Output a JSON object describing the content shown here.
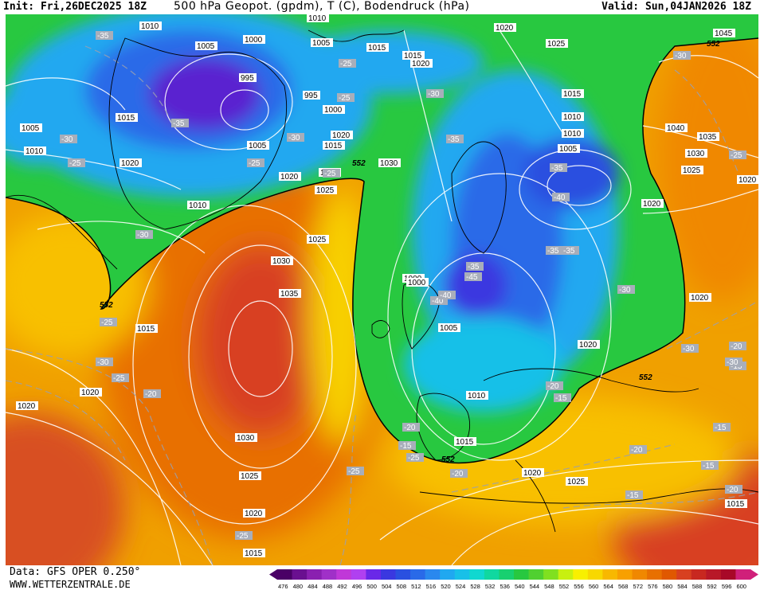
{
  "header": {
    "init": "Init: Fri,26DEC2025 18Z",
    "title": "500 hPa Geopot. (gpdm), T (C), Bodendruck (hPa)",
    "valid": "Valid: Sun,04JAN2026 18Z"
  },
  "footer": {
    "data_source": "Data: GFS OPER 0.250°",
    "website": "WWW.WETTERZENTRALE.DE"
  },
  "legend": {
    "ticks": [
      "476",
      "480",
      "484",
      "488",
      "492",
      "496",
      "500",
      "504",
      "508",
      "512",
      "516",
      "520",
      "524",
      "528",
      "532",
      "536",
      "540",
      "544",
      "548",
      "552",
      "556",
      "560",
      "564",
      "568",
      "572",
      "576",
      "580",
      "584",
      "588",
      "592",
      "596",
      "600"
    ],
    "colors": [
      "#4a0066",
      "#6a1090",
      "#8a20b0",
      "#a030c8",
      "#c038d8",
      "#b040f0",
      "#6a28e8",
      "#3a38e0",
      "#2a50e0",
      "#2a6ae8",
      "#2a88ee",
      "#20a8f0",
      "#18c0e8",
      "#10d8d0",
      "#10d8a0",
      "#18d070",
      "#28c840",
      "#50d030",
      "#80e020",
      "#c8f010",
      "#f8f000",
      "#f8d800",
      "#f8b800",
      "#f8a000",
      "#f08800",
      "#e87000",
      "#e05800",
      "#d84020",
      "#c82820",
      "#b81828",
      "#a80828",
      "#d0207a"
    ]
  },
  "map": {
    "colors": {
      "deep_purple": "#5a10c0",
      "blue_dark": "#2a3ae0",
      "blue": "#2a6ae8",
      "light_blue": "#20a8f0",
      "cyan": "#10d8d0",
      "green": "#28c840",
      "bright_green": "#30d038",
      "yellow": "#f8e800",
      "orange_yellow": "#f8b800",
      "orange": "#f09000",
      "dark_orange": "#e06800",
      "red_orange": "#d84820"
    },
    "geopot_552_labels": [
      "552",
      "552",
      "552",
      "552",
      "552"
    ],
    "pressure_labels": [
      "1010",
      "1010",
      "1000",
      "1005",
      "1005",
      "1015",
      "995",
      "995",
      "1000",
      "1020",
      "1015",
      "1005",
      "1020",
      "1025",
      "1010",
      "1015",
      "1005",
      "1010",
      "1020",
      "1025",
      "1030",
      "1025",
      "1030",
      "1035",
      "1015",
      "1020",
      "1020",
      "1030",
      "1025",
      "1020",
      "1015",
      "1020",
      "1025",
      "1015",
      "1045",
      "1040",
      "1035",
      "1030",
      "1025",
      "1020",
      "1020",
      "1015",
      "1010",
      "1010",
      "1005",
      "1020",
      "1020",
      "1000",
      "1000",
      "1005",
      "1010",
      "1015",
      "1020",
      "1020",
      "1025",
      "1015"
    ],
    "temperature_labels": [
      "-35",
      "-30",
      "-25",
      "-35",
      "-30",
      "-25",
      "-30",
      "-35",
      "-25",
      "-25",
      "-30",
      "-25",
      "-30",
      "-35",
      "-40",
      "-35",
      "-30",
      "-35",
      "-40",
      "-45",
      "-40",
      "-35",
      "-30",
      "-25",
      "-25",
      "-30",
      "-25",
      "-20",
      "-25",
      "-20",
      "-15",
      "-15",
      "-20",
      "-15",
      "-20",
      "-15",
      "-20",
      "-15",
      "-25",
      "-20",
      "-15",
      "-25",
      "-30",
      "-20"
    ]
  }
}
